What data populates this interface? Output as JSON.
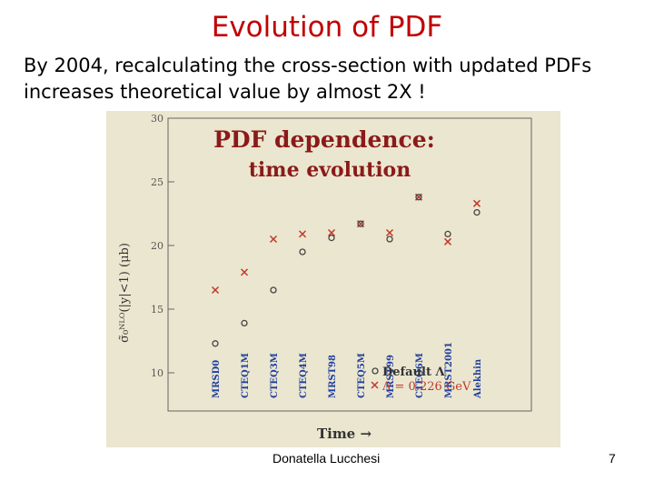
{
  "slide": {
    "title": "Evolution of PDF",
    "subtitle_line1": "By 2004, recalculating the cross-section with updated PDFs",
    "subtitle_line2": "increases theoretical value by almost 2X !",
    "footer_author": "Donatella Lucchesi",
    "page_number": "7"
  },
  "colors": {
    "title": "#c00000",
    "plot_bg": "#ebe6cf",
    "heading": "#8b1a1a",
    "pdf_label": "#1f3fa0",
    "cross": "#c0392b",
    "circle": "#444444"
  },
  "chart_data": {
    "type": "scatter",
    "title_line1": "PDF dependence:",
    "title_line2": "time evolution",
    "xlabel": "Time →",
    "ylabel": "σ̃₀ᴺᴸᴼ(|y|<1) (μb)",
    "ylim": [
      7,
      30
    ],
    "yticks": [
      10,
      15,
      20,
      25,
      30
    ],
    "legend": {
      "position": "bottom-right",
      "default_label": "Default Λ",
      "lambda_label": "Λ = 0.226 GeV"
    },
    "pdfs": [
      {
        "name": "MRSD0",
        "x": 1,
        "default": 12.3,
        "lambda": 16.5
      },
      {
        "name": "CTEQ1M",
        "x": 2,
        "default": 13.9,
        "lambda": 17.9
      },
      {
        "name": "CTEQ3M",
        "x": 3,
        "default": 16.5,
        "lambda": 20.5
      },
      {
        "name": "CTEQ4M",
        "x": 4,
        "default": 19.5,
        "lambda": 20.9
      },
      {
        "name": "MRST98",
        "x": 5,
        "default": 20.6,
        "lambda": 21.0
      },
      {
        "name": "CTEQ5M",
        "x": 6,
        "default": 21.7,
        "lambda": 21.7
      },
      {
        "name": "MRST99",
        "x": 7,
        "default": 20.5,
        "lambda": 21.0
      },
      {
        "name": "CTEQ6M",
        "x": 8,
        "default": 23.8,
        "lambda": 23.8
      },
      {
        "name": "MRST2001",
        "x": 9,
        "default": 20.9,
        "lambda": 20.3
      },
      {
        "name": "Alekhin",
        "x": 10,
        "default": 22.6,
        "lambda": 23.3
      }
    ]
  }
}
